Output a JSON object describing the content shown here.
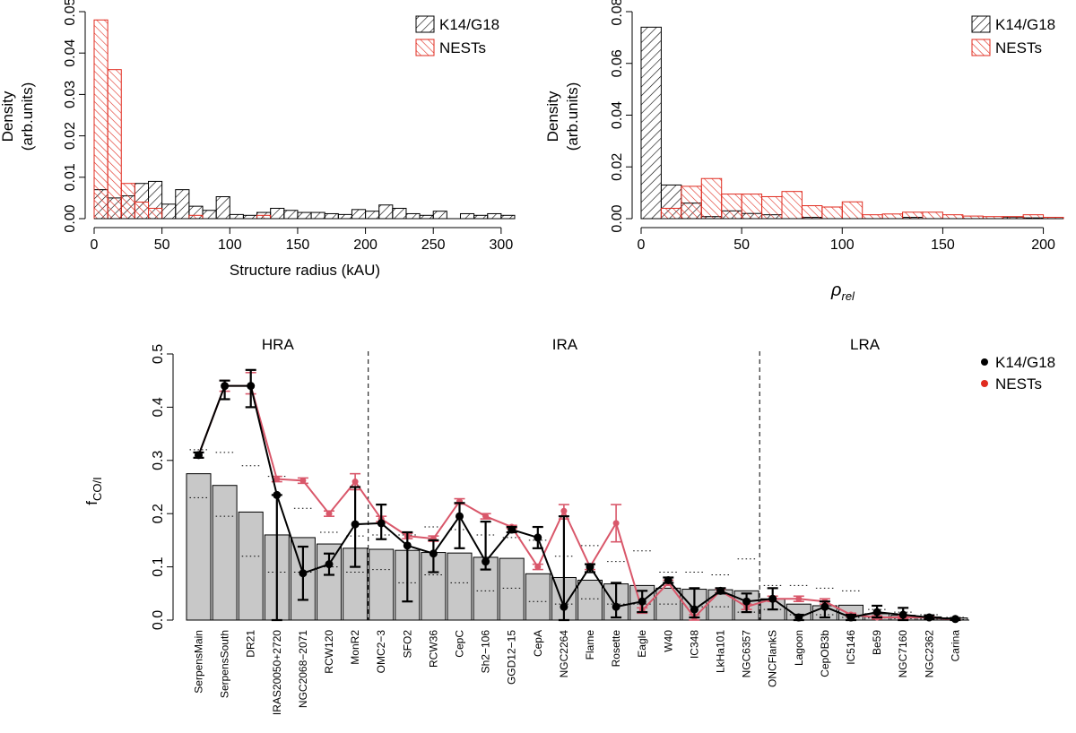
{
  "colors": {
    "k14": "#000000",
    "nests": "#e02b1f",
    "nests_line": "#d9576a",
    "bar_fill": "#c8c8c8"
  },
  "chart_data": [
    {
      "type": "bar",
      "id": "hist-radius",
      "xlabel": "Structure radius (kAU)",
      "ylabel": "Density",
      "ylabel2": "(arb.units)",
      "xlim": [
        0,
        310
      ],
      "ylim": [
        0,
        0.05
      ],
      "xticks": [
        "0",
        "50",
        "100",
        "150",
        "200",
        "250",
        "300"
      ],
      "yticks": [
        "0.00",
        "0.01",
        "0.02",
        "0.03",
        "0.04",
        "0.05"
      ],
      "bin_width": 10,
      "legend": [
        "K14/G18",
        "NESTs"
      ],
      "series": [
        {
          "name": "K14/G18",
          "bins": [
            [
              0,
              0.007
            ],
            [
              10,
              0.005
            ],
            [
              20,
              0.0055
            ],
            [
              30,
              0.0085
            ],
            [
              40,
              0.009
            ],
            [
              50,
              0.0035
            ],
            [
              60,
              0.007
            ],
            [
              70,
              0.003
            ],
            [
              80,
              0.002
            ],
            [
              90,
              0.0053
            ],
            [
              100,
              0.001
            ],
            [
              110,
              0.0008
            ],
            [
              120,
              0.0015
            ],
            [
              130,
              0.0025
            ],
            [
              140,
              0.002
            ],
            [
              150,
              0.0015
            ],
            [
              160,
              0.0015
            ],
            [
              170,
              0.0012
            ],
            [
              180,
              0.001
            ],
            [
              190,
              0.0022
            ],
            [
              200,
              0.0018
            ],
            [
              210,
              0.0033
            ],
            [
              220,
              0.0025
            ],
            [
              230,
              0.0012
            ],
            [
              240,
              0.0008
            ],
            [
              250,
              0.0018
            ],
            [
              270,
              0.0012
            ],
            [
              280,
              0.0008
            ],
            [
              290,
              0.0012
            ],
            [
              300,
              0.0008
            ]
          ]
        },
        {
          "name": "NESTs",
          "bins": [
            [
              0,
              0.048
            ],
            [
              10,
              0.036
            ],
            [
              20,
              0.0085
            ],
            [
              30,
              0.004
            ],
            [
              40,
              0.0025
            ],
            [
              70,
              0.0008
            ],
            [
              120,
              0.0008
            ]
          ]
        }
      ]
    },
    {
      "type": "bar",
      "id": "hist-rho",
      "xlabel": "ρ",
      "xlabel_sub": "rel",
      "ylabel": "Density",
      "ylabel2": "(arb.units)",
      "xlim": [
        0,
        210
      ],
      "ylim": [
        0,
        0.08
      ],
      "xticks": [
        "0",
        "50",
        "100",
        "150",
        "200"
      ],
      "yticks": [
        "0.00",
        "0.02",
        "0.04",
        "0.06",
        "0.08"
      ],
      "bin_width": 10,
      "legend": [
        "K14/G18",
        "NESTs"
      ],
      "series": [
        {
          "name": "K14/G18",
          "bins": [
            [
              0,
              0.074
            ],
            [
              10,
              0.013
            ],
            [
              20,
              0.006
            ],
            [
              30,
              0.0008
            ],
            [
              40,
              0.003
            ],
            [
              50,
              0.002
            ],
            [
              60,
              0.0015
            ],
            [
              80,
              0.0005
            ],
            [
              130,
              0.0005
            ],
            [
              180,
              0.0006
            ],
            [
              190,
              0.0003
            ]
          ]
        },
        {
          "name": "NESTs",
          "bins": [
            [
              0,
              0
            ],
            [
              10,
              0.004
            ],
            [
              20,
              0.0125
            ],
            [
              30,
              0.0155
            ],
            [
              40,
              0.0095
            ],
            [
              50,
              0.0095
            ],
            [
              60,
              0.0085
            ],
            [
              70,
              0.0105
            ],
            [
              80,
              0.005
            ],
            [
              90,
              0.0045
            ],
            [
              100,
              0.0065
            ],
            [
              110,
              0.0015
            ],
            [
              120,
              0.0018
            ],
            [
              130,
              0.0025
            ],
            [
              140,
              0.0025
            ],
            [
              150,
              0.0015
            ],
            [
              160,
              0.001
            ],
            [
              170,
              0.0008
            ],
            [
              180,
              0.0008
            ],
            [
              190,
              0.0015
            ],
            [
              200,
              0.0005
            ]
          ]
        }
      ]
    },
    {
      "type": "bar",
      "id": "fco-chart",
      "ylabel": "f",
      "ylabel_sub": "CO/I",
      "ylim": [
        0,
        0.5
      ],
      "yticks": [
        "0.0",
        "0.1",
        "0.2",
        "0.3",
        "0.4",
        "0.5"
      ],
      "regions": [
        {
          "label": "HRA",
          "from": 0,
          "to": 6
        },
        {
          "label": "IRA",
          "from": 7,
          "to": 21
        },
        {
          "label": "LRA",
          "from": 22,
          "to": 29
        }
      ],
      "legend": [
        "K14/G18",
        "NESTs"
      ],
      "categories": [
        "SerpensMain",
        "SerpensSouth",
        "DR21",
        "IRAS20050+2720",
        "NGC2068−2071",
        "RCW120",
        "MonR2",
        "OMC2−3",
        "SFO2",
        "RCW36",
        "CepC",
        "Sh2−106",
        "GGD12−15",
        "CepA",
        "NGC2264",
        "Flame",
        "Rosette",
        "Eagle",
        "W40",
        "IC348",
        "LkHa101",
        "NGC6357",
        "ONCFlankS",
        "Lagoon",
        "CepOB3b",
        "IC5146",
        "Be59",
        "NGC7160",
        "NGC2362",
        "Carina"
      ],
      "bars": [
        0.275,
        0.253,
        0.203,
        0.16,
        0.155,
        0.143,
        0.135,
        0.133,
        0.131,
        0.127,
        0.126,
        0.118,
        0.116,
        0.087,
        0.08,
        0.075,
        0.068,
        0.065,
        0.06,
        0.058,
        0.057,
        0.055,
        0.04,
        0.03,
        0.027,
        0.028,
        0.012,
        0.009,
        0.006,
        0.004
      ],
      "dots_upper": [
        0.32,
        0.315,
        0.29,
        0.27,
        0.21,
        0.165,
        0.158,
        0.16,
        0.16,
        0.175,
        0.17,
        0.16,
        0.155,
        0.15,
        0.12,
        0.14,
        0.11,
        0.13,
        0.09,
        0.09,
        0.085,
        0.115,
        0.065,
        0.065,
        0.06,
        0.055,
        0.02,
        0.015,
        0.01,
        0.005
      ],
      "dots_lower": [
        0.23,
        0.195,
        0.12,
        0.09,
        0.09,
        0.1,
        0.09,
        0.095,
        0.07,
        0.085,
        0.07,
        0.055,
        0.06,
        0.035,
        0.03,
        0.04,
        0.03,
        0.03,
        0.03,
        0.025,
        0.025,
        0.015,
        0.02,
        0.01,
        0.01,
        0.005,
        0.004,
        0.003,
        0.002,
        0.001
      ],
      "series": [
        {
          "name": "K14/G18",
          "values": [
            0.31,
            0.44,
            0.44,
            0.235,
            0.088,
            0.105,
            0.18,
            0.182,
            0.14,
            0.125,
            0.195,
            0.11,
            0.17,
            0.155,
            0.025,
            0.1,
            0.025,
            0.035,
            0.075,
            0.02,
            0.055,
            0.035,
            0.04,
            0.005,
            0.025,
            0.005,
            0.015,
            0.01,
            0.005,
            0.002
          ],
          "err_low": [
            0.005,
            0.025,
            0.04,
            0.235,
            0.05,
            0.02,
            0.08,
            0.03,
            0.105,
            0.035,
            0.06,
            0.015,
            0.005,
            0.02,
            0.025,
            0.01,
            0.02,
            0.02,
            0.005,
            0.015,
            0.005,
            0.02,
            0.02,
            0.005,
            0.02,
            0.005,
            0.01,
            0.01,
            0.003,
            0.002
          ],
          "err_high": [
            0.005,
            0.01,
            0.03,
            0.0,
            0.05,
            0.02,
            0.07,
            0.035,
            0.025,
            0.025,
            0.025,
            0.075,
            0.005,
            0.02,
            0.17,
            0.005,
            0.045,
            0.02,
            0.005,
            0.04,
            0.005,
            0.015,
            0.02,
            0.005,
            0.01,
            0.005,
            0.012,
            0.013,
            0.004,
            0.002
          ]
        },
        {
          "name": "NESTs",
          "values": [
            0.31,
            0.44,
            0.44,
            0.265,
            0.262,
            0.2,
            0.26,
            0.19,
            0.158,
            0.153,
            0.223,
            0.195,
            0.175,
            0.1,
            0.205,
            0.1,
            0.182,
            0.018,
            0.07,
            0.005,
            0.055,
            0.025,
            0.04,
            0.04,
            0.035,
            0.01,
            0.005,
            0.005,
            0.005,
            0.001
          ],
          "err_low": [
            0.005,
            0.01,
            0.015,
            0.005,
            0.005,
            0.005,
            0.015,
            0.005,
            0.005,
            0.005,
            0.005,
            0.005,
            0.003,
            0.005,
            0.015,
            0.005,
            0.035,
            0.005,
            0.005,
            0.005,
            0.003,
            0.005,
            0.005,
            0.005,
            0.005,
            0.003,
            0.003,
            0.003,
            0.002,
            0.001
          ],
          "err_high": [
            0.005,
            0.01,
            0.025,
            0.005,
            0.005,
            0.005,
            0.015,
            0.005,
            0.005,
            0.005,
            0.005,
            0.005,
            0.003,
            0.005,
            0.012,
            0.005,
            0.035,
            0.005,
            0.005,
            0.005,
            0.003,
            0.005,
            0.005,
            0.005,
            0.005,
            0.003,
            0.003,
            0.003,
            0.002,
            0.001
          ]
        }
      ]
    }
  ]
}
